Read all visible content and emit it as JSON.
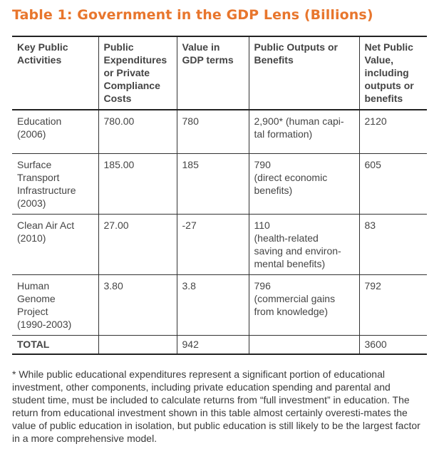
{
  "title": "Table 1: Government in the GDP Lens (Billions)",
  "table": {
    "headers": [
      "Key Public\nActivities",
      "Public\nExpenditures\nor Private\nCompliance\nCosts",
      "Value in\nGDP terms",
      "Public Outputs or\nBenefits",
      "Net Public\nValue,\nincluding\noutputs or\nbenefits"
    ],
    "rows": [
      [
        "Education\n(2006)",
        "780.00",
        "780",
        "2,900* (human capi-\ntal formation)",
        "2120"
      ],
      [
        "Surface\nTransport\nInfrastructure\n(2003)",
        "185.00",
        "185",
        "790\n(direct economic\nbenefits)",
        "605"
      ],
      [
        "Clean Air Act\n(2010)",
        "27.00",
        "-27",
        "110\n(health-related\nsaving and environ-\nmental benefits)",
        "83"
      ],
      [
        "Human\nGenome\nProject\n(1990-2003)",
        "3.80",
        "3.8",
        "796\n(commercial gains\nfrom knowledge)",
        "792"
      ]
    ],
    "total": [
      "TOTAL",
      "",
      "942",
      "",
      "3600"
    ]
  },
  "footnote": "* While public educational expenditures represent a significant portion of educational investment, other components, including private education spending and parental and student time, must be included to calculate returns from “full investment” in education. The return from educational investment shown in this table almost certainly overesti-mates the value of public education in isolation, but public education is still likely to be the largest factor in a more comprehensive model.",
  "colors": {
    "title": "#e8762d",
    "rules": "#333333",
    "text": "#3a3a3a"
  }
}
